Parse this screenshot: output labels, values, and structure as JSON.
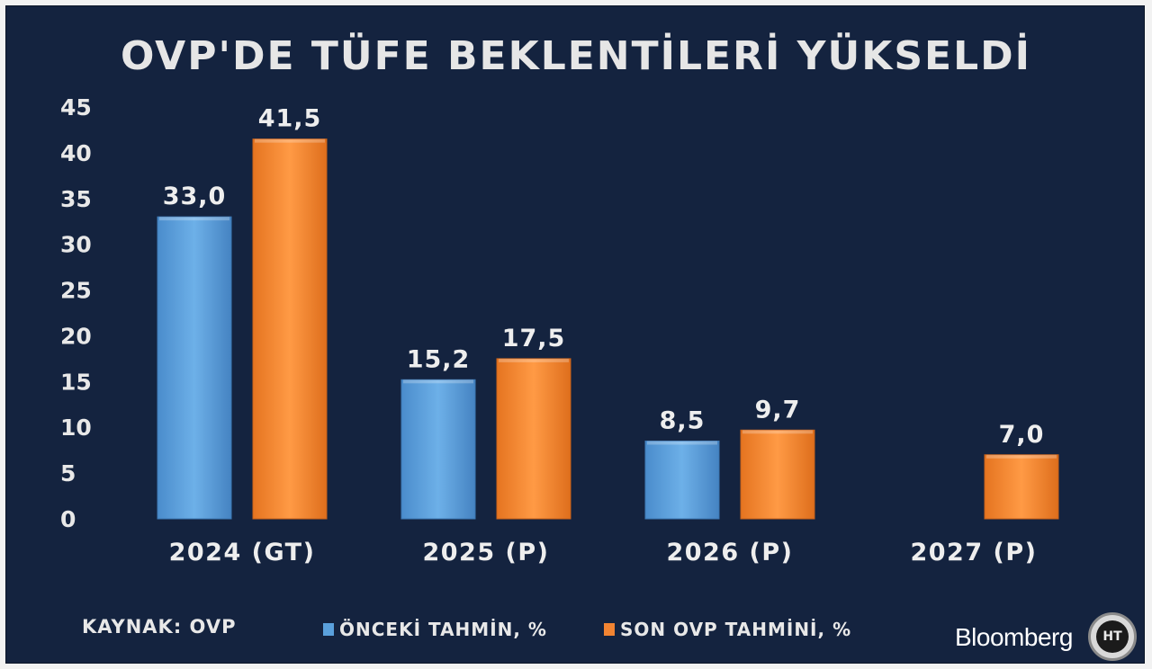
{
  "chart_data": {
    "type": "bar",
    "title": "OVP'DE TÜFE BEKLENTİLERİ YÜKSELDİ",
    "categories": [
      "2024 (GT)",
      "2025 (P)",
      "2026 (P)",
      "2027 (P)"
    ],
    "series": [
      {
        "name": "ÖNCEKİ TAHMİN, %",
        "color": "#5aa0dc",
        "values": [
          33.0,
          15.2,
          8.5,
          null
        ],
        "labels": [
          "33,0",
          "15,2",
          "8,5",
          ""
        ]
      },
      {
        "name": "SON OVP TAHMİNİ, %",
        "color": "#f28432",
        "values": [
          41.5,
          17.5,
          9.7,
          7.0
        ],
        "labels": [
          "41,5",
          "17,5",
          "9,7",
          "7,0"
        ]
      }
    ],
    "ylim": [
      0,
      45
    ],
    "yticks": [
      "0",
      "5",
      "10",
      "15",
      "20",
      "25",
      "30",
      "35",
      "40",
      "45"
    ],
    "grid": false,
    "legend": "bottom"
  },
  "footer": {
    "source": "KAYNAK: OVP",
    "brand": "Bloomberg",
    "logo_text": "HT"
  }
}
